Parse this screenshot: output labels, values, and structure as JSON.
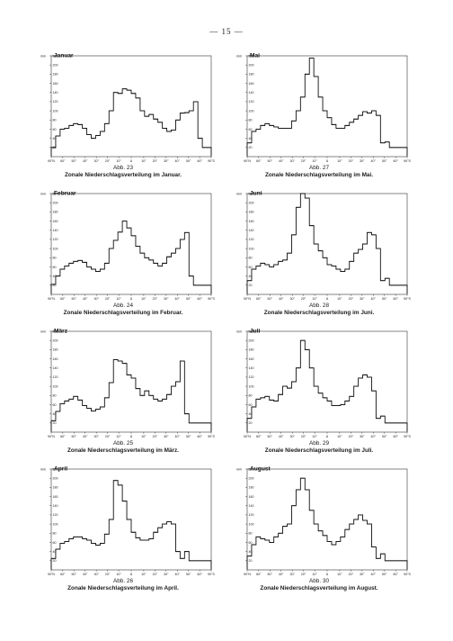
{
  "page_number": "— 15 —",
  "unit": "mm",
  "chart_data": [
    {
      "type": "line",
      "title": "Januar",
      "figure_label": "Abb. 23",
      "caption": "Zonale Niederschlagsverteilung im Januar.",
      "ylim": [
        0,
        220
      ],
      "yticks": [
        20,
        40,
        60,
        80,
        100,
        120,
        140,
        160,
        180,
        200,
        220
      ],
      "xtick_labels": [
        "90°N",
        "60°",
        "50°",
        "40°",
        "30°",
        "20°",
        "10°",
        "Ä",
        "10°",
        "20°",
        "30°",
        "40°",
        "50°",
        "60°",
        "90°S"
      ],
      "x": [
        -90,
        -85,
        -80,
        -75,
        -70,
        -65,
        -60,
        -55,
        -50,
        -45,
        -40,
        -35,
        -30,
        -25,
        -20,
        -15,
        -10,
        -5,
        0,
        5,
        10,
        15,
        20,
        25,
        30,
        35,
        40,
        45,
        50,
        55,
        60,
        65,
        70,
        75,
        80,
        85
      ],
      "values": [
        20,
        45,
        60,
        62,
        68,
        72,
        70,
        62,
        48,
        40,
        46,
        55,
        72,
        100,
        140,
        138,
        148,
        145,
        138,
        128,
        100,
        88,
        92,
        82,
        75,
        62,
        55,
        58,
        80,
        95,
        96,
        100,
        120,
        40,
        20,
        20
      ]
    },
    {
      "type": "line",
      "title": "Mai",
      "figure_label": "Abb. 27",
      "caption": "Zonale Niederschlagsverteilung im Mai.",
      "ylim": [
        0,
        220
      ],
      "yticks": [
        20,
        40,
        60,
        80,
        100,
        120,
        140,
        160,
        180,
        200,
        220
      ],
      "xtick_labels": [
        "90°N",
        "60°",
        "50°",
        "40°",
        "30°",
        "20°",
        "10°",
        "Ä",
        "10°",
        "20°",
        "30°",
        "40°",
        "50°",
        "60°",
        "90°S"
      ],
      "x": [
        -90,
        -85,
        -80,
        -75,
        -70,
        -65,
        -60,
        -55,
        -50,
        -45,
        -40,
        -35,
        -30,
        -25,
        -20,
        -15,
        -10,
        -5,
        0,
        5,
        10,
        15,
        20,
        25,
        30,
        35,
        40,
        45,
        50,
        55,
        60,
        65,
        70,
        75,
        80,
        85
      ],
      "values": [
        30,
        55,
        60,
        68,
        72,
        68,
        65,
        62,
        62,
        62,
        78,
        100,
        130,
        180,
        215,
        175,
        130,
        100,
        85,
        70,
        62,
        62,
        68,
        75,
        82,
        90,
        98,
        95,
        100,
        90,
        30,
        32,
        20,
        20,
        20,
        20
      ]
    },
    {
      "type": "line",
      "title": "Februar",
      "figure_label": "Abb. 24",
      "caption": "Zonale Niederschlagsverteilung im Februar.",
      "ylim": [
        0,
        220
      ],
      "yticks": [
        20,
        40,
        60,
        80,
        100,
        120,
        140,
        160,
        180,
        200,
        220
      ],
      "xtick_labels": [
        "90°N",
        "60°",
        "50°",
        "40°",
        "30°",
        "20°",
        "10°",
        "Ä",
        "10°",
        "20°",
        "30°",
        "40°",
        "50°",
        "60°",
        "90°S"
      ],
      "x": [
        -90,
        -85,
        -80,
        -75,
        -70,
        -65,
        -60,
        -55,
        -50,
        -45,
        -40,
        -35,
        -30,
        -25,
        -20,
        -15,
        -10,
        -5,
        0,
        5,
        10,
        15,
        20,
        25,
        30,
        35,
        40,
        45,
        50,
        55,
        60,
        65,
        70,
        75,
        80,
        85
      ],
      "values": [
        22,
        40,
        55,
        62,
        68,
        72,
        74,
        70,
        60,
        55,
        50,
        55,
        68,
        100,
        118,
        136,
        160,
        145,
        128,
        105,
        90,
        80,
        75,
        68,
        62,
        68,
        82,
        90,
        100,
        120,
        135,
        40,
        20,
        20,
        20,
        20
      ]
    },
    {
      "type": "line",
      "title": "Juni",
      "figure_label": "Abb. 28",
      "caption": "Zonale Niederschlagsverteilung im Juni.",
      "ylim": [
        0,
        220
      ],
      "yticks": [
        20,
        40,
        60,
        80,
        100,
        120,
        140,
        160,
        180,
        200,
        220
      ],
      "xtick_labels": [
        "90°N",
        "60°",
        "50°",
        "40°",
        "30°",
        "20°",
        "10°",
        "Ä",
        "10°",
        "20°",
        "30°",
        "40°",
        "50°",
        "60°",
        "90°S"
      ],
      "x": [
        -90,
        -85,
        -80,
        -75,
        -70,
        -65,
        -60,
        -55,
        -50,
        -45,
        -40,
        -35,
        -30,
        -25,
        -20,
        -15,
        -10,
        -5,
        0,
        5,
        10,
        15,
        20,
        25,
        30,
        35,
        40,
        45,
        50,
        55,
        60,
        65,
        70,
        75,
        80,
        85
      ],
      "values": [
        30,
        55,
        62,
        68,
        65,
        60,
        65,
        72,
        75,
        90,
        130,
        190,
        220,
        210,
        150,
        110,
        95,
        80,
        65,
        62,
        55,
        50,
        55,
        72,
        90,
        98,
        110,
        135,
        130,
        100,
        30,
        35,
        20,
        20,
        20,
        20
      ]
    },
    {
      "type": "line",
      "title": "März",
      "figure_label": "Abb. 25",
      "caption": "Zonale Niederschlagsverteilung im März.",
      "ylim": [
        0,
        220
      ],
      "yticks": [
        20,
        40,
        60,
        80,
        100,
        120,
        140,
        160,
        180,
        200,
        220
      ],
      "xtick_labels": [
        "90°N",
        "60°",
        "50°",
        "40°",
        "30°",
        "20°",
        "10°",
        "Ä",
        "10°",
        "20°",
        "30°",
        "40°",
        "50°",
        "60°",
        "90°S"
      ],
      "x": [
        -90,
        -85,
        -80,
        -75,
        -70,
        -65,
        -60,
        -55,
        -50,
        -45,
        -40,
        -35,
        -30,
        -25,
        -20,
        -15,
        -10,
        -5,
        0,
        5,
        10,
        15,
        20,
        25,
        30,
        35,
        40,
        45,
        50,
        55,
        60,
        65,
        70,
        75,
        80,
        85
      ],
      "values": [
        25,
        45,
        62,
        68,
        72,
        78,
        70,
        58,
        52,
        46,
        50,
        55,
        75,
        108,
        158,
        155,
        150,
        125,
        118,
        95,
        80,
        90,
        80,
        72,
        68,
        72,
        82,
        100,
        110,
        155,
        40,
        20,
        20,
        20,
        20,
        20
      ]
    },
    {
      "type": "line",
      "title": "Juli",
      "figure_label": "Abb. 29",
      "caption": "Zonale Niederschlagsverteilung im Juli.",
      "ylim": [
        0,
        220
      ],
      "yticks": [
        20,
        40,
        60,
        80,
        100,
        120,
        140,
        160,
        180,
        200,
        220
      ],
      "xtick_labels": [
        "90°N",
        "60°",
        "50°",
        "40°",
        "30°",
        "20°",
        "10°",
        "Ä",
        "10°",
        "20°",
        "30°",
        "40°",
        "50°",
        "60°",
        "90°S"
      ],
      "x": [
        -90,
        -85,
        -80,
        -75,
        -70,
        -65,
        -60,
        -55,
        -50,
        -45,
        -40,
        -35,
        -30,
        -25,
        -20,
        -15,
        -10,
        -5,
        0,
        5,
        10,
        15,
        20,
        25,
        30,
        35,
        40,
        45,
        50,
        55,
        60,
        65,
        70,
        75,
        80,
        85
      ],
      "values": [
        30,
        55,
        72,
        75,
        78,
        70,
        68,
        82,
        100,
        96,
        110,
        140,
        200,
        180,
        140,
        100,
        85,
        75,
        68,
        58,
        58,
        60,
        68,
        78,
        100,
        118,
        125,
        120,
        90,
        30,
        35,
        20,
        20,
        20,
        20,
        20
      ]
    },
    {
      "type": "line",
      "title": "April",
      "figure_label": "Abb. 26",
      "caption": "Zonale Niederschlagsverteilung im April.",
      "ylim": [
        0,
        220
      ],
      "yticks": [
        20,
        40,
        60,
        80,
        100,
        120,
        140,
        160,
        180,
        200,
        220
      ],
      "xtick_labels": [
        "90°N",
        "60°",
        "50°",
        "40°",
        "30°",
        "20°",
        "10°",
        "Ä",
        "10°",
        "20°",
        "30°",
        "40°",
        "50°",
        "60°",
        "90°S"
      ],
      "x": [
        -90,
        -85,
        -80,
        -75,
        -70,
        -65,
        -60,
        -55,
        -50,
        -45,
        -40,
        -35,
        -30,
        -25,
        -20,
        -15,
        -10,
        -5,
        0,
        5,
        10,
        15,
        20,
        25,
        30,
        35,
        40,
        45,
        50,
        55,
        60,
        65,
        70,
        75,
        80,
        85
      ],
      "values": [
        25,
        45,
        58,
        62,
        68,
        72,
        72,
        68,
        65,
        58,
        54,
        58,
        78,
        110,
        195,
        185,
        150,
        110,
        82,
        70,
        65,
        65,
        68,
        82,
        92,
        100,
        105,
        100,
        40,
        25,
        40,
        20,
        20,
        20,
        20,
        20
      ]
    },
    {
      "type": "line",
      "title": "August",
      "figure_label": "Abb. 30",
      "caption": "Zonale Niederschlagsverteilung im August.",
      "ylim": [
        0,
        220
      ],
      "yticks": [
        20,
        40,
        60,
        80,
        100,
        120,
        140,
        160,
        180,
        200,
        220
      ],
      "xtick_labels": [
        "90°N",
        "60°",
        "50°",
        "40°",
        "30°",
        "20°",
        "10°",
        "Ä",
        "10°",
        "20°",
        "30°",
        "40°",
        "50°",
        "60°",
        "90°S"
      ],
      "x": [
        -90,
        -85,
        -80,
        -75,
        -70,
        -65,
        -60,
        -55,
        -50,
        -45,
        -40,
        -35,
        -30,
        -25,
        -20,
        -15,
        -10,
        -5,
        0,
        5,
        10,
        15,
        20,
        25,
        30,
        35,
        40,
        45,
        50,
        55,
        60,
        65,
        70,
        75,
        80,
        85
      ],
      "values": [
        30,
        55,
        72,
        68,
        65,
        60,
        72,
        80,
        95,
        100,
        140,
        175,
        200,
        175,
        130,
        100,
        85,
        75,
        62,
        55,
        62,
        72,
        88,
        100,
        110,
        120,
        108,
        100,
        50,
        25,
        35,
        20,
        20,
        20,
        20,
        20
      ]
    }
  ]
}
